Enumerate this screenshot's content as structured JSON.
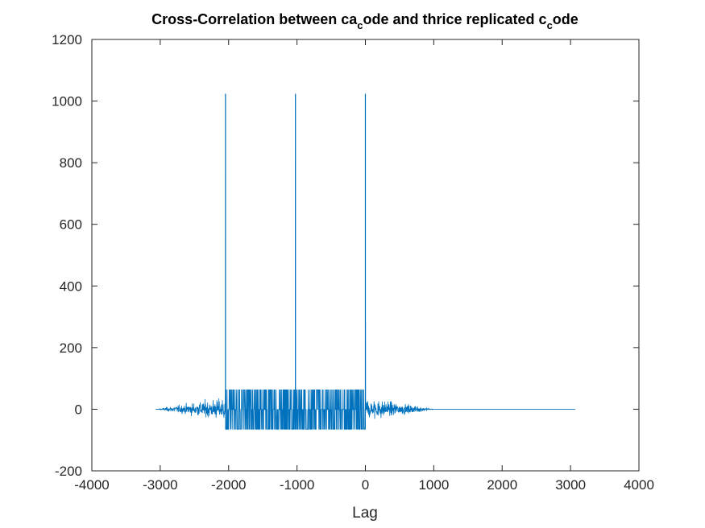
{
  "chart_data": {
    "type": "line",
    "title": {
      "parts": [
        {
          "text": "Cross-Correlation between ca",
          "sub": false
        },
        {
          "text": "c",
          "sub": true
        },
        {
          "text": "ode and thrice replicated c",
          "sub": false
        },
        {
          "text": "c",
          "sub": true
        },
        {
          "text": "ode",
          "sub": false
        }
      ]
    },
    "xlabel": "Lag",
    "ylabel": "",
    "xlim": [
      -4000,
      4000
    ],
    "ylim": [
      -200,
      1200
    ],
    "x_ticks": [
      -4000,
      -3000,
      -2000,
      -1000,
      0,
      1000,
      2000,
      3000,
      4000
    ],
    "y_ticks": [
      -200,
      0,
      200,
      400,
      600,
      800,
      1000,
      1200
    ],
    "x_tick_labels": [
      "-4000",
      "-3000",
      "-2000",
      "-1000",
      "0",
      "1000",
      "2000",
      "3000",
      "4000"
    ],
    "y_tick_labels": [
      "-200",
      "0",
      "200",
      "400",
      "600",
      "800",
      "1000",
      "1200"
    ],
    "grid": false,
    "series": [
      {
        "color": "#0072BD",
        "x_range": [
          -3069,
          3069
        ],
        "peaks": [
          {
            "x": -2046,
            "y": 1023
          },
          {
            "x": -1023,
            "y": 1023
          },
          {
            "x": 0,
            "y": 1023
          }
        ],
        "secondary_spike": {
          "x": 0,
          "y": 280
        },
        "correlation_levels": [
          63,
          -1,
          -65
        ],
        "noise_envelope_max": 80,
        "noise_extent": [
          -3069,
          1023
        ],
        "flat_extent": [
          1023,
          3069
        ],
        "flat_value": 0
      }
    ]
  }
}
